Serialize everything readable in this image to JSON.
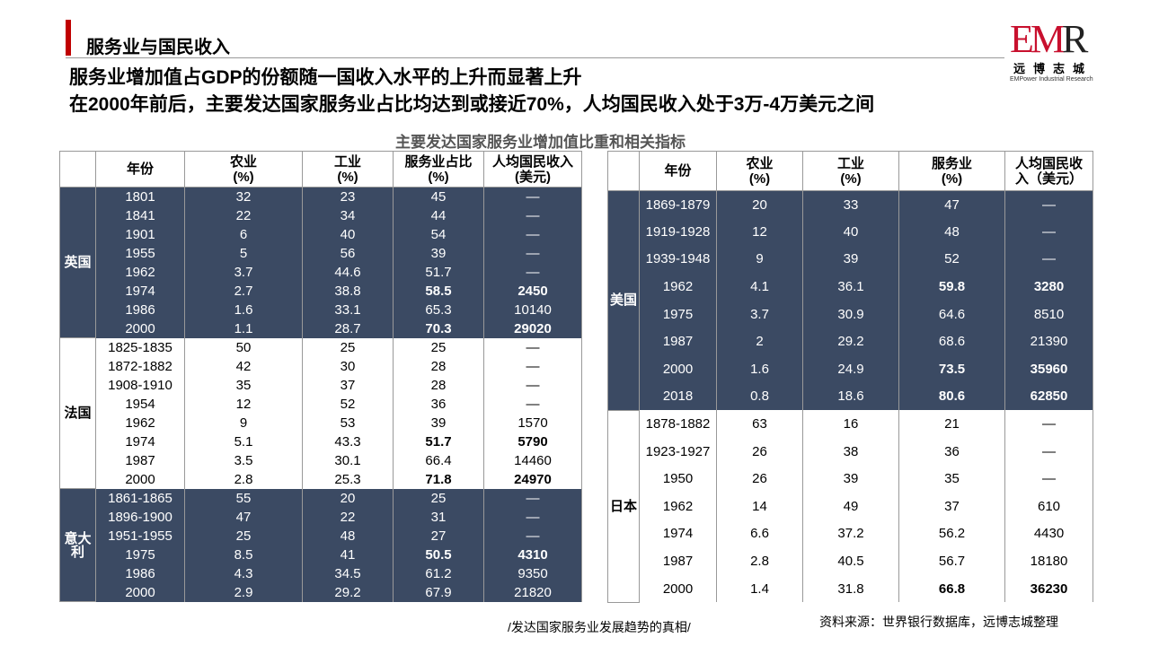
{
  "header": {
    "section": "服务业与国民收入",
    "line1": "服务业增加值占GDP的份额随一国收入水平的上升而显著上升",
    "line2": "在2000年前后，主要发达国家服务业占比均达到或接近70%，人均国民收入处于3万-4万美元之间",
    "caption": "主要发达国家服务业增加值比重和相关指标"
  },
  "logo": {
    "mark": "EMR",
    "cn": "远博志城",
    "en": "EMPower Industrial Research"
  },
  "colors": {
    "dark": "#3b4a63",
    "red": "#c00000"
  },
  "left_table": {
    "headers": [
      "",
      "年份",
      "农业\n(%)",
      "工业\n(%)",
      "服务业占比\n(%)",
      "人均国民收入\n(美元)"
    ],
    "groups": [
      {
        "country": "英国",
        "dark": true,
        "rows": [
          [
            "1801",
            "32",
            "23",
            "45",
            "—"
          ],
          [
            "1841",
            "22",
            "34",
            "44",
            "—"
          ],
          [
            "1901",
            "6",
            "40",
            "54",
            "—"
          ],
          [
            "1955",
            "5",
            "56",
            "39",
            "—"
          ],
          [
            "1962",
            "3.7",
            "44.6",
            "51.7",
            "—"
          ],
          [
            "1974",
            "2.7",
            "38.8",
            "58.5*",
            "2450*"
          ],
          [
            "1986",
            "1.6",
            "33.1",
            "65.3",
            "10140"
          ],
          [
            "2000",
            "1.1",
            "28.7",
            "70.3*",
            "29020*"
          ]
        ]
      },
      {
        "country": "法国",
        "dark": false,
        "rows": [
          [
            "1825-1835",
            "50",
            "25",
            "25",
            "—"
          ],
          [
            "1872-1882",
            "42",
            "30",
            "28",
            "—"
          ],
          [
            "1908-1910",
            "35",
            "37",
            "28",
            "—"
          ],
          [
            "1954",
            "12",
            "52",
            "36",
            "—"
          ],
          [
            "1962",
            "9",
            "53",
            "39",
            "1570"
          ],
          [
            "1974",
            "5.1",
            "43.3",
            "51.7*",
            "5790*"
          ],
          [
            "1987",
            "3.5",
            "30.1",
            "66.4",
            "14460"
          ],
          [
            "2000~",
            "2.8",
            "25.3",
            "71.8*",
            "24970*"
          ]
        ]
      },
      {
        "country": "意大利",
        "dark": true,
        "rows": [
          [
            "1861-1865",
            "55",
            "20",
            "25",
            "—"
          ],
          [
            "1896-1900",
            "47",
            "22",
            "31",
            "—"
          ],
          [
            "1951-1955",
            "25",
            "48",
            "27",
            "—"
          ],
          [
            "1975",
            "8.5",
            "41",
            "50.5*",
            "4310*"
          ],
          [
            "1986",
            "4.3",
            "34.5",
            "61.2",
            "9350"
          ],
          [
            "2000",
            "2.9",
            "29.2",
            "67.9",
            "21820"
          ]
        ]
      }
    ]
  },
  "right_table": {
    "headers": [
      "",
      "年份",
      "农业\n(%)",
      "工业\n(%)",
      "服务业\n(%)",
      "人均国民收\n入（美元）"
    ],
    "groups": [
      {
        "country": "美国",
        "dark": true,
        "rows": [
          [
            "1869-1879",
            "20",
            "33",
            "47",
            "—"
          ],
          [
            "1919-1928",
            "12",
            "40",
            "48",
            "—"
          ],
          [
            "1939-1948",
            "9",
            "39",
            "52",
            "—"
          ],
          [
            "1962",
            "4.1",
            "36.1",
            "59.8*",
            "3280*"
          ],
          [
            "1975",
            "3.7",
            "30.9",
            "64.6",
            "8510"
          ],
          [
            "1987",
            "2",
            "29.2",
            "68.6",
            "21390"
          ],
          [
            "2000",
            "1.6",
            "24.9",
            "73.5*",
            "35960*"
          ],
          [
            "2018",
            "0.8",
            "18.6",
            "80.6*",
            "62850*"
          ]
        ]
      },
      {
        "country": "日本",
        "dark": false,
        "rows": [
          [
            "1878-1882",
            "63",
            "16",
            "21",
            "—"
          ],
          [
            "1923-1927",
            "26",
            "38",
            "36",
            "—"
          ],
          [
            "1950",
            "26",
            "39",
            "35",
            "—"
          ],
          [
            "1962",
            "14",
            "49",
            "37",
            "610"
          ],
          [
            "1974",
            "6.6",
            "37.2",
            "56.2",
            "4430"
          ],
          [
            "1987",
            "2.8",
            "40.5",
            "56.7",
            "18180"
          ],
          [
            "2000",
            "1.4",
            "31.8",
            "66.8*",
            "36230*"
          ]
        ]
      }
    ]
  },
  "source": "资料来源：世界银行数据库，远博志城整理",
  "footer": "/发达国家服务业发展趋势的真相/"
}
